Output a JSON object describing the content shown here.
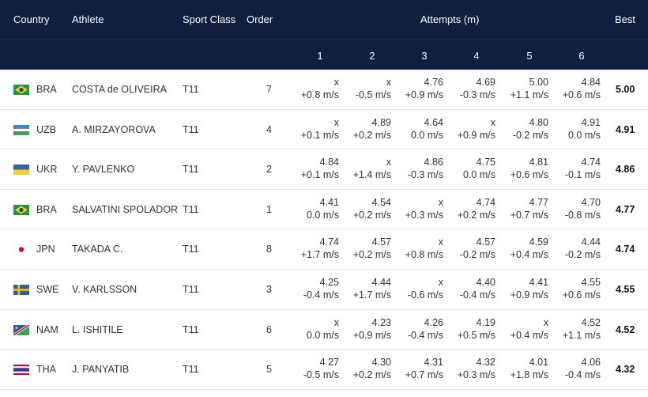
{
  "headers": {
    "country": "Country",
    "athlete": "Athlete",
    "sport_class": "Sport Class",
    "order": "Order",
    "attempts": "Attempts (m)",
    "best": "Best",
    "attempt_numbers": [
      "1",
      "2",
      "3",
      "4",
      "5",
      "6"
    ]
  },
  "rows": [
    {
      "flag": "flag-bra-icon",
      "country": "BRA",
      "athlete": "COSTA de OLIVEIRA",
      "class": "T11",
      "order": "7",
      "attempts": [
        [
          "x",
          "+0.8 m/s"
        ],
        [
          "x",
          "-0.5 m/s"
        ],
        [
          "4.76",
          "+0.9 m/s"
        ],
        [
          "4.69",
          "-0.3 m/s"
        ],
        [
          "5.00",
          "+1.1 m/s"
        ],
        [
          "4.84",
          "+0.6 m/s"
        ]
      ],
      "best": "5.00"
    },
    {
      "flag": "flag-uzb-icon",
      "country": "UZB",
      "athlete": "A. MIRZAYOROVA",
      "class": "T11",
      "order": "4",
      "attempts": [
        [
          "x",
          "+0.1 m/s"
        ],
        [
          "4.89",
          "+0.2 m/s"
        ],
        [
          "4.64",
          "0.0 m/s"
        ],
        [
          "x",
          "+0.9 m/s"
        ],
        [
          "4.80",
          "-0.2 m/s"
        ],
        [
          "4.91",
          "0.0 m/s"
        ]
      ],
      "best": "4.91"
    },
    {
      "flag": "flag-ukr-icon",
      "country": "UKR",
      "athlete": "Y. PAVLENKO",
      "class": "T11",
      "order": "2",
      "attempts": [
        [
          "4.84",
          "+0.1 m/s"
        ],
        [
          "x",
          "+1.4 m/s"
        ],
        [
          "4.86",
          "-0.3 m/s"
        ],
        [
          "4.75",
          "0.0 m/s"
        ],
        [
          "4.81",
          "+0.6 m/s"
        ],
        [
          "4.74",
          "-0.1 m/s"
        ]
      ],
      "best": "4.86"
    },
    {
      "flag": "flag-bra-icon",
      "country": "BRA",
      "athlete": "SALVATINI SPOLADOR",
      "class": "T11",
      "order": "1",
      "attempts": [
        [
          "4.41",
          "0.0 m/s"
        ],
        [
          "4.54",
          "+0.2 m/s"
        ],
        [
          "x",
          "+0.3 m/s"
        ],
        [
          "4.74",
          "+0.2 m/s"
        ],
        [
          "4.77",
          "+0.7 m/s"
        ],
        [
          "4.70",
          "-0.8 m/s"
        ]
      ],
      "best": "4.77"
    },
    {
      "flag": "flag-jpn-icon",
      "country": "JPN",
      "athlete": "TAKADA C.",
      "class": "T11",
      "order": "8",
      "attempts": [
        [
          "4.74",
          "+1.7 m/s"
        ],
        [
          "4.57",
          "+0.2 m/s"
        ],
        [
          "x",
          "+0.8 m/s"
        ],
        [
          "4.57",
          "-0.2 m/s"
        ],
        [
          "4.59",
          "+0.4 m/s"
        ],
        [
          "4.44",
          "-0.2 m/s"
        ]
      ],
      "best": "4.74"
    },
    {
      "flag": "flag-swe-icon",
      "country": "SWE",
      "athlete": "V. KARLSSON",
      "class": "T11",
      "order": "3",
      "attempts": [
        [
          "4.25",
          "-0.4 m/s"
        ],
        [
          "4.44",
          "+1.7 m/s"
        ],
        [
          "x",
          "-0.6 m/s"
        ],
        [
          "4.40",
          "-0.4 m/s"
        ],
        [
          "4.41",
          "+0.9 m/s"
        ],
        [
          "4.55",
          "+0.6 m/s"
        ]
      ],
      "best": "4.55"
    },
    {
      "flag": "flag-nam-icon",
      "country": "NAM",
      "athlete": "L. ISHITILE",
      "class": "T11",
      "order": "6",
      "attempts": [
        [
          "x",
          "0.0 m/s"
        ],
        [
          "4.23",
          "+0.9 m/s"
        ],
        [
          "4.26",
          "-0.4 m/s"
        ],
        [
          "4.19",
          "+0.5 m/s"
        ],
        [
          "x",
          "+0.4 m/s"
        ],
        [
          "4.52",
          "+1.1 m/s"
        ]
      ],
      "best": "4.52"
    },
    {
      "flag": "flag-tha-icon",
      "country": "THA",
      "athlete": "J. PANYATIB",
      "class": "T11",
      "order": "5",
      "attempts": [
        [
          "4.27",
          "-0.5 m/s"
        ],
        [
          "4.30",
          "+0.2 m/s"
        ],
        [
          "4.31",
          "+0.7 m/s"
        ],
        [
          "4.32",
          "+0.3 m/s"
        ],
        [
          "4.01",
          "+1.8 m/s"
        ],
        [
          "4.06",
          "-0.4 m/s"
        ]
      ],
      "best": "4.32"
    }
  ]
}
